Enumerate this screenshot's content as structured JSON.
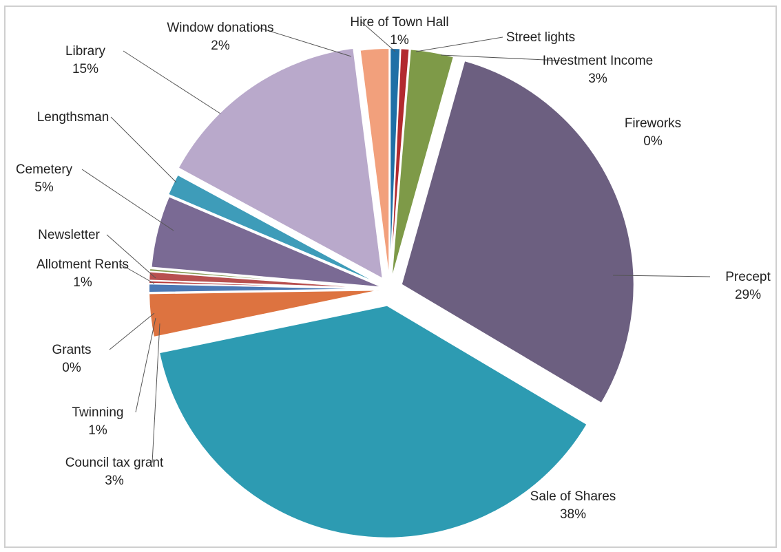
{
  "chart_data": {
    "type": "pie",
    "title": "",
    "legend": "none",
    "slices": [
      {
        "name": "Hire of Town Hall",
        "label": "Hire of Town Hall",
        "pct_text": "1%",
        "value": 0.7,
        "color": "#1f6fa6"
      },
      {
        "name": "Street lights",
        "label": "Street lights",
        "pct_text": "",
        "value": 0.6,
        "color": "#b22a2f"
      },
      {
        "name": "Investment Income",
        "label": "Investment Income",
        "pct_text": "3%",
        "value": 3,
        "color": "#7e9a48"
      },
      {
        "name": "Fireworks",
        "label": "Fireworks",
        "pct_text": "0%",
        "value": 0.05,
        "color": "#6a5485"
      },
      {
        "name": "Precept",
        "label": "Precept",
        "pct_text": "29%",
        "value": 29,
        "color": "#6c5f80"
      },
      {
        "name": "Sale of Shares",
        "label": "Sale of Shares",
        "pct_text": "38%",
        "value": 38,
        "color": "#2d9bb2"
      },
      {
        "name": "Council tax grant",
        "label": "Council tax grant",
        "pct_text": "3%",
        "value": 3,
        "color": "#dd7340"
      },
      {
        "name": "Twinning",
        "label": "Twinning",
        "pct_text": "1%",
        "value": 0.6,
        "color": "#4c79b5"
      },
      {
        "name": "Grants",
        "label": "Grants",
        "pct_text": "0%",
        "value": 0.2,
        "color": "#b73c3c"
      },
      {
        "name": "Allotment Rents",
        "label": "Allotment Rents",
        "pct_text": "1%",
        "value": 0.6,
        "color": "#b85050"
      },
      {
        "name": "Newsletter",
        "label": "Newsletter",
        "pct_text": "",
        "value": 0.2,
        "color": "#8a9d58"
      },
      {
        "name": "Cemetery",
        "label": "Cemetery",
        "pct_text": "5%",
        "value": 5,
        "color": "#7a6a94"
      },
      {
        "name": "Lengthsman",
        "label": "Lengthsman",
        "pct_text": "",
        "value": 1.5,
        "color": "#3e9cb9"
      },
      {
        "name": "Library",
        "label": "Library",
        "pct_text": "15%",
        "value": 15,
        "color": "#b9a9cb"
      },
      {
        "name": "Window donations",
        "label": "Window donations",
        "pct_text": "2%",
        "value": 2,
        "color": "#f2a07c"
      }
    ]
  }
}
